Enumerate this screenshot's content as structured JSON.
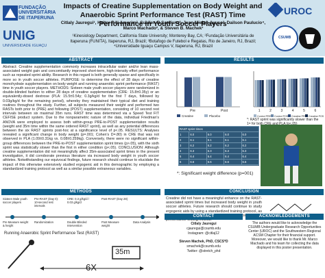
{
  "header": {
    "title": "Impacts of Creatine Supplementation on Body Weight and Anaerobic Sprint Performance Test (RAST) Time Performance in Youth Soccer Players",
    "authors": "Citlaly Jauregui¹, Heitor P N Amorim², Suellen B Sant'ana², Juan Mielgo Ayuso³, Dailson Paulucio⁴, Marco Machado², & Steven B. Machek¹",
    "affiliations": "¹Kinesiology Department, California State University; Monterey Bay, CA; ²Fundação Universitária de Itaperuna (FUNITA), Itaperuna, RJ, Brazil; ³Botafogo de Futebol e Regatas, Rio de Janeiro, RJ, Brazil; ⁴Universidade Iguaçu Campus V, Itaperuna, RJ, Brazil",
    "logo_left_1": "FUNDAÇÃO UNIVERSITÁRIA DE ITAPERUNA",
    "logo_left_2": "UNIG",
    "logo_left_3": "UNIVERSIDADE IGUAÇU",
    "logo_right_1": "UROC",
    "logo_right_2": "CSUMB"
  },
  "sections": {
    "abstract": "ABSTRACT",
    "results": "RESULTS",
    "methods": "METHODS",
    "conclusion": "CONCLUSION",
    "contact": "CONTACT",
    "acknowledgements": "ACKNOWLEDGEMENTS"
  },
  "abstract_text": "Abstract: Creatine supplementation commonly increases intracellular water and/or lean mass-associated weight gain and concomitantly improved short-term, high-intensity effort performance such as repeated sprint ability. Research in this regard is both generally sparse and specifically in more so in youth soccer athletes. PURPOSE: to determine the effect of 28 days of creatine monohydrate supplementation on body weight and running anaerobic sprint performance (RAST) time in youth soccer players. METHODS: Sixteen male youth soccer players were randomized in double-blinded fashion to either 28 days of creatine supplementation (CRE: 15.8±0.35y) or an equivalently-dosed dextrose (PLA: 15.5±0.54y; 0.3g/kg/d for the first 7 days, followed by 0.03g/kg/d for the remaining period), whereby they maintained their typical diet and training routines throughout the study. Further, all subjects measured their weight and performed two RASTs both prior to (PRE) and following (POST) supplementation, consisting of 10 second rest intervals between six maximal 35m runs. RAST time was determined via a Speed Test FIT CEFISE product system. Due to the nonparametric nature of the data, individual Friedman's ANOVA were employed to assess both within-group PRE-to-POST supplementation results (weight and 35m time within the same ordered RAST sprint), as well as any potential differences between the six RAST sprints post-hoc at a significance level of p<.05. RESULTS: Analyses revealed a significant change in body weight (p=.001; Cohen's D=.80) in CRE that was not observed in PLA (1.09±0.31kg vs. 0.08±0.259kg). Conversely, there were no significant within-group differences between the PRE-to-POST supplementation sprint times (p>.05), with the sixth sprint was statistically slower than the first in either condition (p<.05). CONCLUSION: Although creatine supplementation did not meaningfully affect 35m-associated sprint times in the present investigation, it did corroborate previous literature via increased body weight in youth soccer athletes. Notwithstanding our equivocal findings, future research should continue to elucidate the impact of this otherwise extensively studied ergogenic aid in this demographic by employing a standardized training protocol as well as a similar possible extraneous variables.",
  "methods": {
    "steps": [
      "Sixteen Male youth soccer players",
      "Pre-RAST (Day 0): 10-second rest intervals",
      "CRE: 0.3 g/kg/d / 0.03 g/kg/d",
      "Post-RAST (Day 28)"
    ],
    "sub_steps": [
      "Pre Measure weight & height",
      "Randomization",
      "Double Blinded Intervention",
      "Post Measure weight",
      "Data Analysis"
    ],
    "rast_label": "Running Anaerobic Sprint Performance Test (RAST)",
    "distance": "35m",
    "reps": "6X"
  },
  "results": {
    "caption_weight": "*: Significant weight difference (p=001)",
    "caption_sprint": "*: RAST sprint was significantly slower than the 1ˢᵗ for both CRE and PLA (p<.05)",
    "table_title": "RAST sprint times"
  },
  "chart_data": [
    {
      "type": "bar",
      "title": "",
      "categories": [
        "Pre",
        "Post"
      ],
      "series": [
        {
          "name": "Creatine",
          "values": [
            66,
            67
          ]
        },
        {
          "name": "Placebo",
          "values": [
            67,
            67
          ]
        }
      ],
      "ylim": [
        0,
        80
      ],
      "legend": "bottom"
    },
    {
      "type": "bar",
      "title": "",
      "categories": [
        "1",
        "2",
        "3",
        "4",
        "5",
        "6"
      ],
      "series": [
        {
          "name": "Control PRE",
          "values": [
            6.0,
            6.1,
            6.2,
            6.3,
            6.4,
            6.6
          ]
        },
        {
          "name": "Control POST",
          "values": [
            6.0,
            6.1,
            6.2,
            6.3,
            6.4,
            6.6
          ]
        },
        {
          "name": "Creatine PRE",
          "values": [
            6.0,
            6.1,
            6.2,
            6.3,
            6.4,
            6.6
          ]
        },
        {
          "name": "Creatine POST",
          "values": [
            6.0,
            6.1,
            6.2,
            6.3,
            6.4,
            6.6
          ]
        }
      ],
      "ylim": [
        0,
        8
      ],
      "legend": "bottom"
    }
  ],
  "conclusion_text": "Creatine did not have a meaningful enhance on the RAST-associated sprint times but increased body weight in youth soccer athletes. Future research should continue to study ergogenic aids by using a standardized training protocol, as well as a broader scope of body composition and performance testing metrics.",
  "contact": {
    "name1": "Citlaly Jauregui",
    "email1": "cjauregui@csumb.edu",
    "handle1": "Instagram: @citlaj12",
    "name2": "Steven Machek, PhD, CSCS*D",
    "email2": "smachek@csumb.edu",
    "handle2": "Twitter: @stretch_phd"
  },
  "ack_text": "The authors would like to acknowledge the CSUMB Undergraduate Research Opportunities Center (UROC) and the Southwestern Regional ACSM Chapter for their financial support. Moreover, we would like to thank Mr. Marco Machado and his team for collecting the data displayed in this poster presentation.",
  "colors": {
    "accent": "#0e5f8a",
    "header_bg": "#cfe3ee",
    "bar_cre": "#2f4b7c",
    "bar_pla": "#9fb3c8"
  }
}
